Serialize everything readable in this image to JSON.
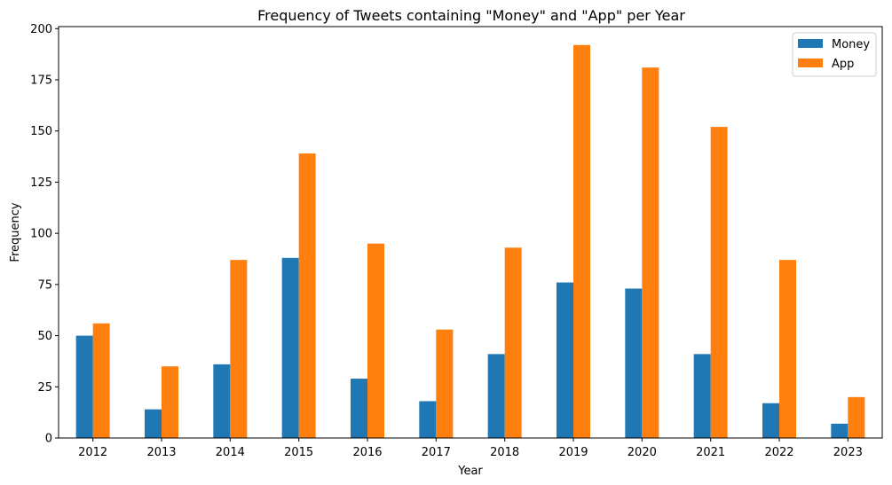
{
  "chart_data": {
    "type": "bar",
    "title": "Frequency of Tweets containing \"Money\" and \"App\" per Year",
    "xlabel": "Year",
    "ylabel": "Frequency",
    "categories": [
      "2012",
      "2013",
      "2014",
      "2015",
      "2016",
      "2017",
      "2018",
      "2019",
      "2020",
      "2021",
      "2022",
      "2023"
    ],
    "series": [
      {
        "name": "Money",
        "color": "#1f77b4",
        "values": [
          50,
          14,
          36,
          88,
          29,
          18,
          41,
          76,
          73,
          41,
          17,
          7
        ]
      },
      {
        "name": "App",
        "color": "#ff7f0e",
        "values": [
          56,
          35,
          87,
          139,
          95,
          53,
          93,
          192,
          181,
          152,
          87,
          20
        ]
      }
    ],
    "ylim": [
      0,
      201
    ],
    "yticks": [
      0,
      25,
      50,
      75,
      100,
      125,
      150,
      175,
      200
    ],
    "ytick_labels": [
      "0",
      "25",
      "50",
      "75",
      "100",
      "125",
      "150",
      "175",
      "200"
    ],
    "grid": false,
    "legend_position": "top-right"
  }
}
